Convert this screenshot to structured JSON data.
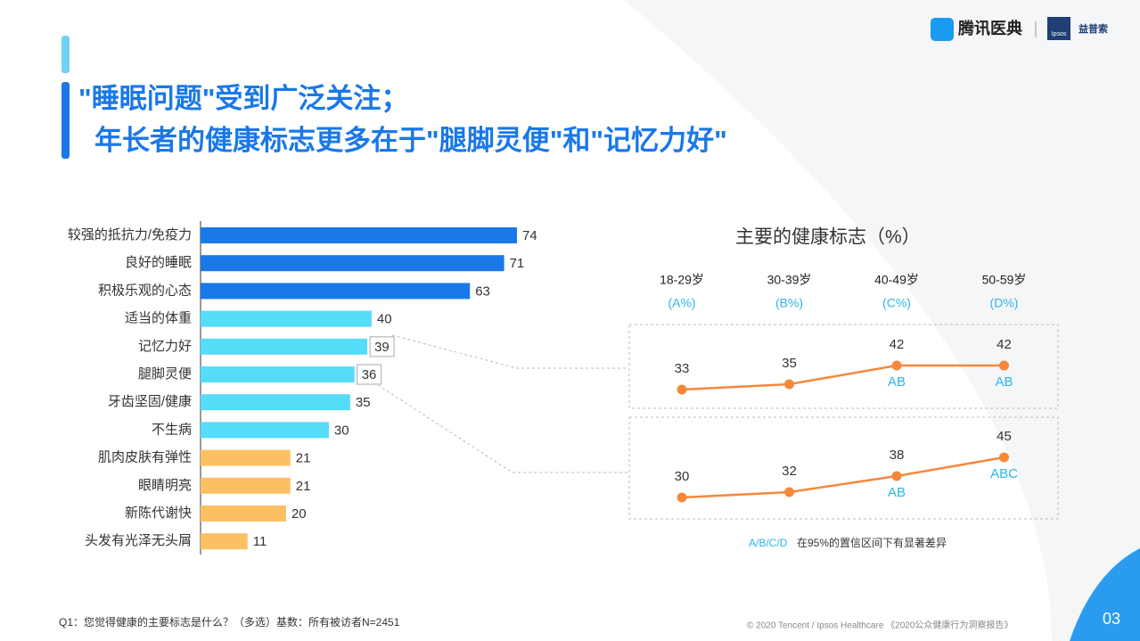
{
  "header": {
    "title_line1": "\"睡眠问题\"受到广泛关注；",
    "title_line2": "年长者的健康标志更多在于\"腿脚灵便\"和\"记忆力好\"",
    "logo_main": "腾讯医典",
    "logo_ipsos": "Ipsos",
    "logo_ipsos_cn": "益普索"
  },
  "chart_data": [
    {
      "type": "bar",
      "orientation": "horizontal",
      "categories": [
        "较强的抵抗力/免疫力",
        "良好的睡眠",
        "积极乐观的心态",
        "适当的体重",
        "记忆力好",
        "腿脚灵便",
        "牙齿坚固/健康",
        "不生病",
        "肌肉皮肤有弹性",
        "眼睛明亮",
        "新陈代谢快",
        "头发有光泽无头屑"
      ],
      "values": [
        74,
        71,
        63,
        40,
        39,
        36,
        35,
        30,
        21,
        21,
        20,
        11
      ],
      "colors": [
        "#1a78e8",
        "#1a78e8",
        "#1a78e8",
        "#55dcf8",
        "#55dcf8",
        "#55dcf8",
        "#55dcf8",
        "#55dcf8",
        "#fcc063",
        "#fcc063",
        "#fcc063",
        "#fcc063"
      ]
    },
    {
      "type": "line",
      "title": "主要的健康标志（%）",
      "categories": [
        "18-29岁",
        "30-39岁",
        "40-49岁",
        "50-59岁"
      ],
      "category_sublabels": [
        "(A%)",
        "(B%)",
        "(C%)",
        "(D%)"
      ],
      "series": [
        {
          "color": "#f5883a",
          "values": [
            33,
            35,
            42,
            42
          ],
          "annotations": [
            null,
            null,
            "AB",
            "AB"
          ]
        },
        {
          "color": "#f5883a",
          "values": [
            30,
            32,
            38,
            45
          ],
          "annotations": [
            null,
            null,
            "AB",
            "ABC"
          ]
        }
      ],
      "note_key": "A/B/C/D",
      "note": "在95%的置信区间下有显著差异"
    }
  ],
  "footer": {
    "question": "Q1：您觉得健康的主要标志是什么？（多选）基数：所有被访者N=2451",
    "copyright": "© 2020 Tencent / Ipsos Healthcare 《2020公众健康行为洞察报告》",
    "page": "03"
  }
}
